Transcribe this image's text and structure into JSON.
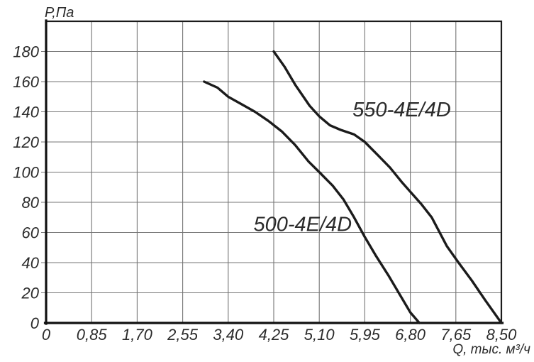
{
  "page": {
    "background": "#ffffff",
    "ink_color": "#1b1b1b",
    "grid_color": "#757575"
  },
  "chart_data": {
    "type": "line",
    "title": "",
    "xlabel": "Q, тыс. м³/ч",
    "ylabel": "Р,Па",
    "xlim": [
      0,
      8.5
    ],
    "ylim": [
      0,
      200
    ],
    "grid": true,
    "legend_position": "inline-annotations",
    "x_tick_values": [
      0,
      0.85,
      1.7,
      2.55,
      3.4,
      4.25,
      5.1,
      5.95,
      6.8,
      7.65,
      8.5
    ],
    "x_tick_labels": [
      "0",
      "0,85",
      "1,70",
      "2,55",
      "3,40",
      "4,25",
      "5,10",
      "5,95",
      "6,80",
      "7,65",
      "8,50"
    ],
    "y_tick_values": [
      0,
      20,
      40,
      60,
      80,
      100,
      120,
      140,
      160,
      180
    ],
    "y_tick_labels": [
      "0",
      "20",
      "40",
      "60",
      "80",
      "100",
      "120",
      "140",
      "160",
      "180"
    ],
    "series": [
      {
        "name": "550-4E/4D",
        "label_pos": [
          6.64,
          137
        ],
        "points": [
          [
            4.25,
            180
          ],
          [
            4.45,
            170
          ],
          [
            4.65,
            158
          ],
          [
            4.92,
            144
          ],
          [
            5.1,
            137
          ],
          [
            5.3,
            131
          ],
          [
            5.5,
            128
          ],
          [
            5.75,
            125
          ],
          [
            5.95,
            120
          ],
          [
            6.2,
            111
          ],
          [
            6.42,
            103
          ],
          [
            6.65,
            93
          ],
          [
            6.8,
            87
          ],
          [
            7.0,
            79
          ],
          [
            7.2,
            70
          ],
          [
            7.48,
            51
          ],
          [
            7.7,
            40
          ],
          [
            7.95,
            28
          ],
          [
            8.2,
            15
          ],
          [
            8.5,
            0
          ]
        ]
      },
      {
        "name": "500-4E/4D",
        "label_pos": [
          4.79,
          61
        ],
        "points": [
          [
            2.95,
            160
          ],
          [
            3.2,
            156
          ],
          [
            3.4,
            150
          ],
          [
            3.65,
            145
          ],
          [
            3.9,
            140
          ],
          [
            4.15,
            134
          ],
          [
            4.4,
            127
          ],
          [
            4.65,
            118
          ],
          [
            4.9,
            107
          ],
          [
            5.1,
            100
          ],
          [
            5.35,
            91
          ],
          [
            5.55,
            82
          ],
          [
            5.75,
            70
          ],
          [
            5.95,
            57
          ],
          [
            6.15,
            45
          ],
          [
            6.4,
            31
          ],
          [
            6.6,
            19
          ],
          [
            6.8,
            7
          ],
          [
            6.97,
            0
          ]
        ]
      }
    ]
  }
}
